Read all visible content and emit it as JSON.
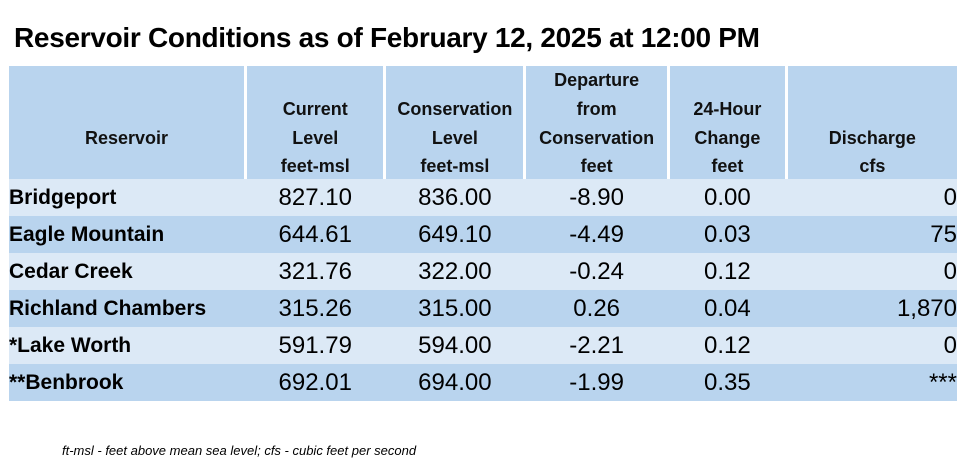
{
  "title": "Reservoir Conditions as of February 12, 2025 at 12:00 PM",
  "headers": {
    "reservoir": "Reservoir",
    "current_l1": "Current",
    "current_l2": "Level",
    "conservation_l1": "Conservation",
    "conservation_l2": "Level",
    "departure_l1": "Departure",
    "departure_l2": "from",
    "departure_l3": "Conservation",
    "change_l1": "24-Hour",
    "change_l2": "Change",
    "discharge": "Discharge"
  },
  "units": {
    "current": "feet-msl",
    "conservation": "feet-msl",
    "departure": "feet",
    "change": "feet",
    "discharge": "cfs"
  },
  "rows": [
    {
      "name": "Bridgeport",
      "current": "827.10",
      "conservation": "836.00",
      "departure": "-8.90",
      "change": "0.00",
      "discharge": "0"
    },
    {
      "name": "Eagle Mountain",
      "current": "644.61",
      "conservation": "649.10",
      "departure": "-4.49",
      "change": "0.03",
      "discharge": "75"
    },
    {
      "name": "Cedar Creek",
      "current": "321.76",
      "conservation": "322.00",
      "departure": "-0.24",
      "change": "0.12",
      "discharge": "0"
    },
    {
      "name": "Richland Chambers",
      "current": "315.26",
      "conservation": "315.00",
      "departure": "0.26",
      "change": "0.04",
      "discharge": "1,870"
    },
    {
      "name": "*Lake Worth",
      "current": "591.79",
      "conservation": "594.00",
      "departure": "-2.21",
      "change": "0.12",
      "discharge": "0"
    },
    {
      "name": "**Benbrook",
      "current": "692.01",
      "conservation": "694.00",
      "departure": "-1.99",
      "change": "0.35",
      "discharge": "***"
    }
  ],
  "footnote": "ft-msl - feet above mean sea level; cfs - cubic feet per second",
  "colors": {
    "header_bg": "#b9d4ee",
    "row_light": "#dce9f6",
    "row_dark": "#b9d4ee"
  }
}
